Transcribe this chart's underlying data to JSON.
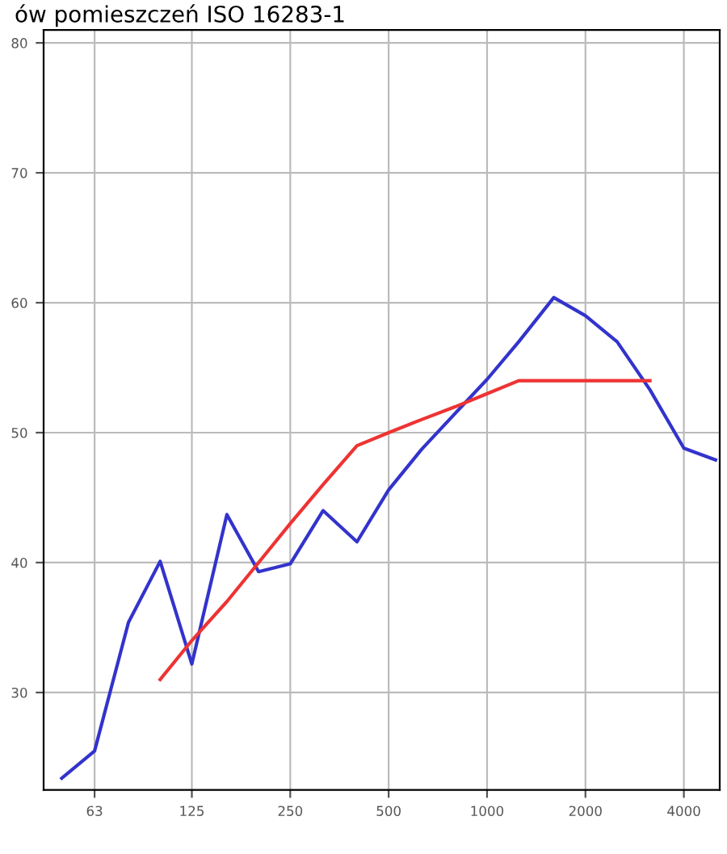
{
  "chart_data": {
    "type": "line",
    "title": "ów pomieszczeń ISO 16283-1",
    "log": "x",
    "xlim": [
      44,
      5150
    ],
    "xticks": [
      63,
      125,
      250,
      500,
      1000,
      2000,
      4000
    ],
    "ylim": [
      22.5,
      81
    ],
    "yticks": [
      30,
      40,
      50,
      60,
      70,
      80
    ],
    "grid": true,
    "marker": "none",
    "line_style": "solid",
    "series": [
      {
        "color": "#3333cc",
        "x": [
          50,
          63,
          80,
          100,
          125,
          160,
          200,
          250,
          315,
          400,
          500,
          630,
          800,
          1000,
          1250,
          1600,
          2000,
          2500,
          3150,
          4000,
          5000
        ],
        "values": [
          23.4,
          25.5,
          35.4,
          40.1,
          32.2,
          43.7,
          39.3,
          39.9,
          44.0,
          41.6,
          45.6,
          48.7,
          51.5,
          54.1,
          57.0,
          60.4,
          59.0,
          57.0,
          53.3,
          48.8,
          47.9
        ]
      },
      {
        "color": "#ee3333",
        "x": [
          100,
          125,
          160,
          200,
          250,
          315,
          400,
          500,
          630,
          800,
          1000,
          1250,
          1600,
          2000,
          2500,
          3150
        ],
        "values": [
          31,
          34,
          37,
          40,
          43,
          46,
          49,
          50,
          51,
          52,
          53,
          54,
          54,
          54,
          54,
          54
        ]
      }
    ]
  }
}
